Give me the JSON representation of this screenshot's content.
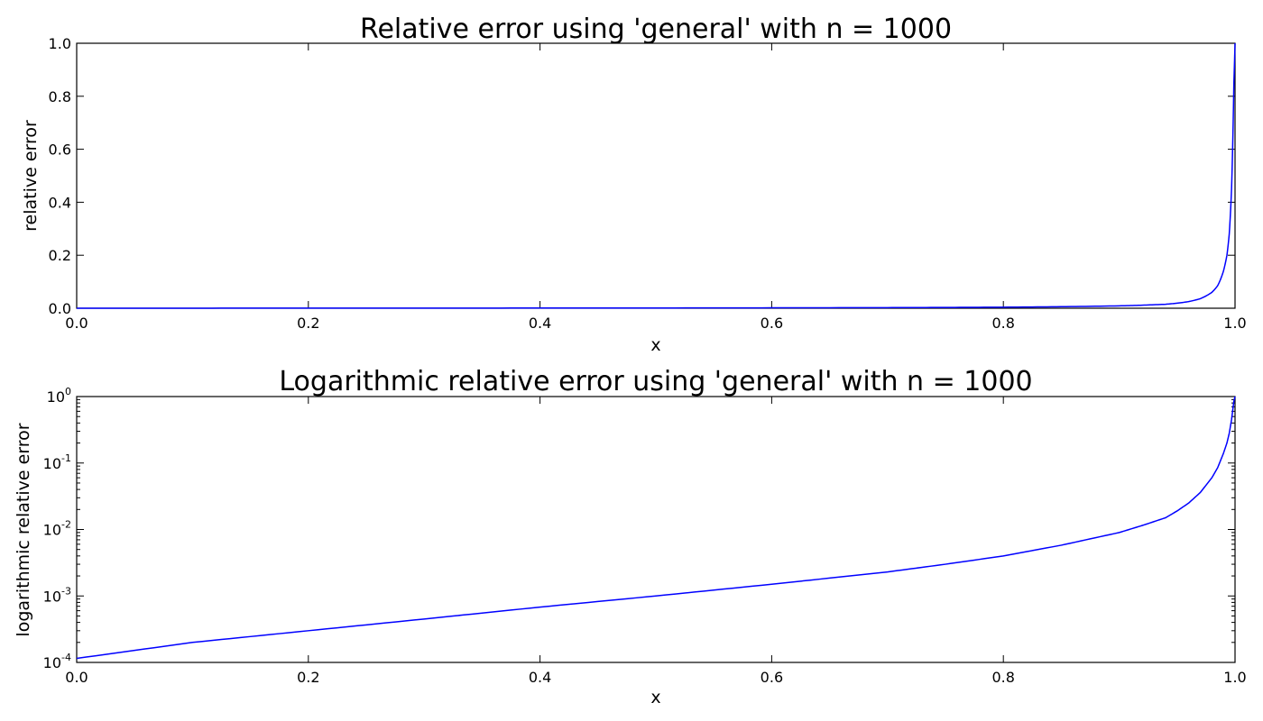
{
  "chart_data": [
    {
      "type": "line",
      "title": "Relative error using 'general' with n = 1000",
      "xlabel": "x",
      "ylabel": "relative error",
      "xlim": [
        0.0,
        1.0
      ],
      "ylim": [
        0.0,
        1.0
      ],
      "yscale": "linear",
      "x_ticks": [
        "0.0",
        "0.2",
        "0.4",
        "0.6",
        "0.8",
        "1.0"
      ],
      "y_ticks": [
        "0.0",
        "0.2",
        "0.4",
        "0.6",
        "0.8",
        "1.0"
      ],
      "grid": false,
      "line_color": "#0000ff",
      "series": [
        {
          "x": [
            0.0,
            0.1,
            0.2,
            0.3,
            0.4,
            0.5,
            0.6,
            0.7,
            0.75,
            0.8,
            0.85,
            0.9,
            0.92,
            0.94,
            0.95,
            0.96,
            0.97,
            0.98,
            0.985,
            0.99,
            0.993,
            0.995,
            0.997,
            0.998,
            0.999,
            1.0
          ],
          "y": [
            0.0001,
            0.0002,
            0.0003,
            0.0005,
            0.0007,
            0.001,
            0.0015,
            0.0023,
            0.003,
            0.004,
            0.0058,
            0.009,
            0.0115,
            0.015,
            0.019,
            0.025,
            0.036,
            0.06,
            0.085,
            0.14,
            0.2,
            0.28,
            0.45,
            0.62,
            0.85,
            1.0
          ]
        }
      ]
    },
    {
      "type": "line",
      "title": "Logarithmic relative error using 'general' with n = 1000",
      "xlabel": "x",
      "ylabel": "logarithmic relative error",
      "xlim": [
        0.0,
        1.0
      ],
      "ylim": [
        0.0001,
        1.0
      ],
      "yscale": "log",
      "x_ticks": [
        "0.0",
        "0.2",
        "0.4",
        "0.6",
        "0.8",
        "1.0"
      ],
      "y_ticks": [
        {
          "base": "10",
          "exp": "-4",
          "value": 0.0001
        },
        {
          "base": "10",
          "exp": "-3",
          "value": 0.001
        },
        {
          "base": "10",
          "exp": "-2",
          "value": 0.01
        },
        {
          "base": "10",
          "exp": "-1",
          "value": 0.1
        },
        {
          "base": "10",
          "exp": "0",
          "value": 1
        }
      ],
      "grid": false,
      "line_color": "#0000ff",
      "series": [
        {
          "x": [
            0.0,
            0.1,
            0.2,
            0.3,
            0.4,
            0.5,
            0.6,
            0.7,
            0.75,
            0.8,
            0.85,
            0.9,
            0.92,
            0.94,
            0.95,
            0.96,
            0.97,
            0.98,
            0.985,
            0.99,
            0.993,
            0.995,
            0.997,
            0.998,
            0.999,
            1.0
          ],
          "y": [
            0.000115,
            0.0002,
            0.0003,
            0.00045,
            0.00068,
            0.001,
            0.0015,
            0.0023,
            0.003,
            0.004,
            0.0058,
            0.009,
            0.0115,
            0.015,
            0.019,
            0.025,
            0.036,
            0.06,
            0.085,
            0.14,
            0.2,
            0.28,
            0.45,
            0.62,
            0.85,
            1.0
          ]
        }
      ]
    }
  ]
}
